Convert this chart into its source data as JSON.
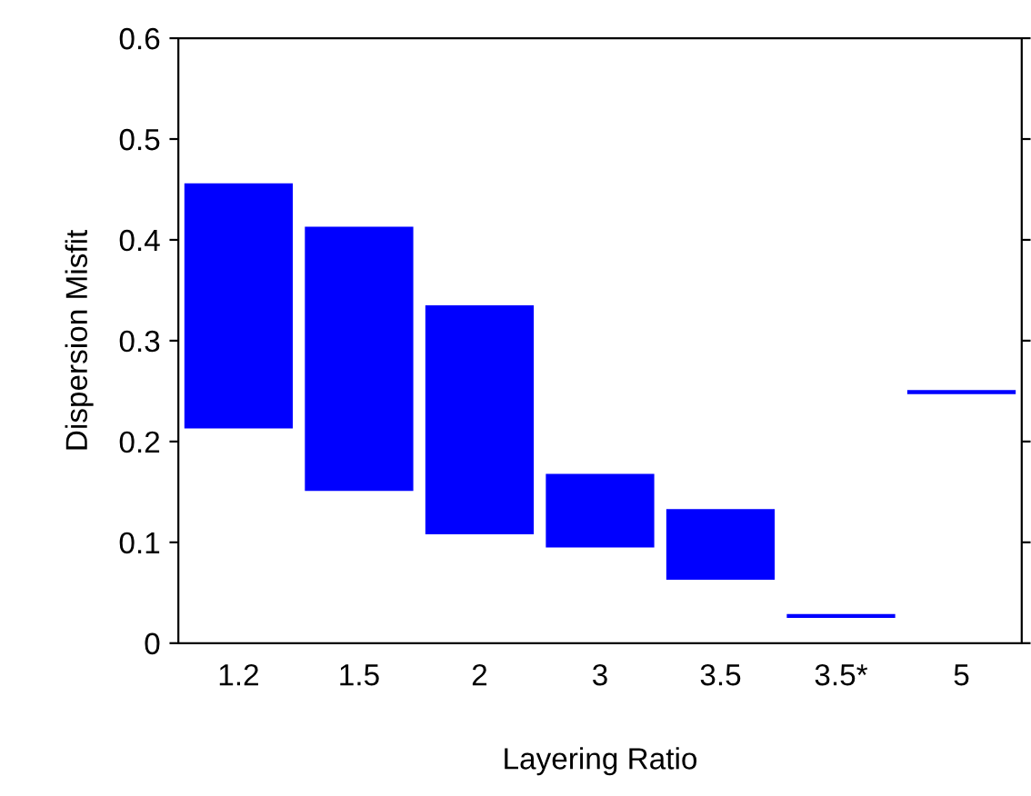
{
  "chart_data": {
    "type": "bar",
    "xlabel": "Layering Ratio",
    "ylabel": "Dispersion Misfit",
    "categories": [
      "1.2",
      "1.5",
      "2",
      "3",
      "3.5",
      "3.5*",
      "5"
    ],
    "base": [
      0.213,
      0.151,
      0.108,
      0.095,
      0.063,
      0.025,
      0.247
    ],
    "values": [
      0.243,
      0.262,
      0.227,
      0.073,
      0.07,
      0.004,
      0.004
    ],
    "color": "#0000ff",
    "ylim": [
      0,
      0.6
    ],
    "yticks": [
      0,
      0.1,
      0.2,
      0.3,
      0.4,
      0.5,
      0.6
    ],
    "grid": false,
    "legend": false
  }
}
